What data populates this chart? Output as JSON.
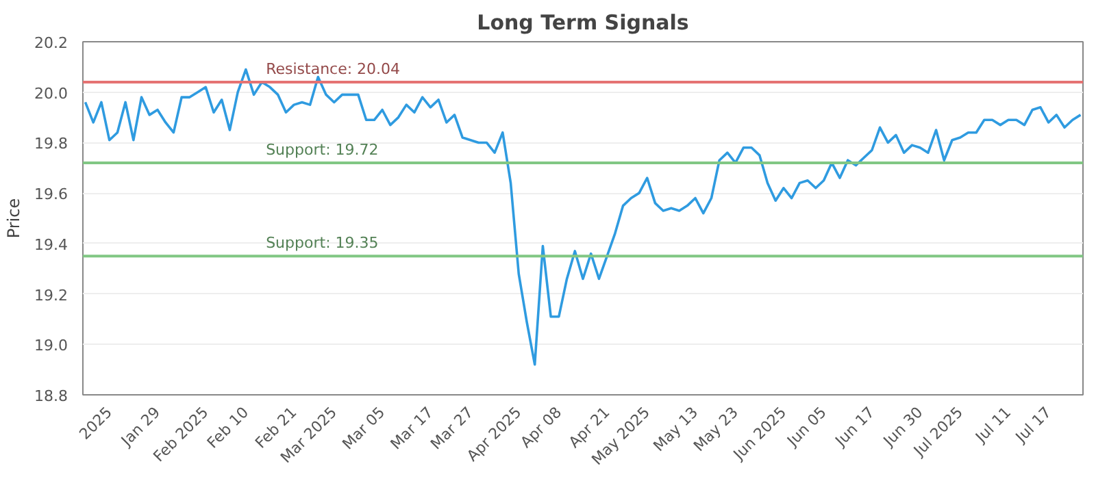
{
  "chart_data": {
    "type": "line",
    "title": "Long Term Signals",
    "ylabel": "Price",
    "categories": [
      null,
      null,
      null,
      "2025",
      null,
      null,
      null,
      null,
      null,
      "Jan 29",
      null,
      null,
      null,
      null,
      null,
      "Feb 2025",
      null,
      null,
      null,
      null,
      "Feb 10",
      null,
      null,
      null,
      null,
      null,
      "Feb 21",
      null,
      null,
      null,
      null,
      "Mar 2025",
      null,
      null,
      null,
      null,
      null,
      "Mar 05",
      null,
      null,
      null,
      null,
      null,
      "Mar 17",
      null,
      null,
      null,
      null,
      "Mar 27",
      null,
      null,
      null,
      null,
      null,
      "Apr 2025",
      null,
      null,
      null,
      null,
      "Apr 08",
      null,
      null,
      null,
      null,
      null,
      "Apr 21",
      null,
      null,
      null,
      null,
      "May 2025",
      null,
      null,
      null,
      null,
      null,
      "May 13",
      null,
      null,
      null,
      null,
      "May 23",
      null,
      null,
      null,
      null,
      null,
      "Jun 2025",
      null,
      null,
      null,
      null,
      "Jun 05",
      null,
      null,
      null,
      null,
      null,
      "Jun 17",
      null,
      null,
      null,
      null,
      null,
      "Jun 30",
      null,
      null,
      null,
      null,
      "Jul 2025",
      null,
      null,
      null,
      null,
      null,
      "Jul 11",
      null,
      null,
      null,
      null,
      "Jul 17",
      null,
      null,
      null,
      null
    ],
    "series": [
      {
        "color": "#2f9be0",
        "values": [
          19.96,
          19.88,
          19.96,
          19.81,
          19.84,
          19.96,
          19.81,
          19.98,
          19.91,
          19.93,
          19.88,
          19.84,
          19.98,
          19.98,
          20.0,
          20.02,
          19.92,
          19.97,
          19.85,
          20.0,
          20.09,
          19.99,
          20.04,
          20.02,
          19.99,
          19.92,
          19.95,
          19.96,
          19.95,
          20.06,
          19.99,
          19.96,
          19.99,
          19.99,
          19.99,
          19.89,
          19.89,
          19.93,
          19.87,
          19.9,
          19.95,
          19.92,
          19.98,
          19.94,
          19.97,
          19.88,
          19.91,
          19.82,
          19.81,
          19.8,
          19.8,
          19.76,
          19.84,
          19.64,
          19.28,
          19.09,
          18.92,
          19.39,
          19.11,
          19.11,
          19.26,
          19.37,
          19.26,
          19.36,
          19.26,
          19.35,
          19.44,
          19.55,
          19.58,
          19.6,
          19.66,
          19.56,
          19.53,
          19.54,
          19.53,
          19.55,
          19.58,
          19.52,
          19.58,
          19.73,
          19.76,
          19.72,
          19.78,
          19.78,
          19.75,
          19.64,
          19.57,
          19.62,
          19.58,
          19.64,
          19.65,
          19.62,
          19.65,
          19.72,
          19.66,
          19.73,
          19.71,
          19.74,
          19.77,
          19.86,
          19.8,
          19.83,
          19.76,
          19.79,
          19.78,
          19.76,
          19.85,
          19.73,
          19.81,
          19.82,
          19.84,
          19.84,
          19.89,
          19.89,
          19.87,
          19.89,
          19.89,
          19.87,
          19.93,
          19.94,
          19.88,
          19.91,
          19.86,
          19.89,
          19.91
        ]
      }
    ],
    "ylim": [
      18.8,
      20.2
    ],
    "yticks": [
      18.8,
      {
        "value": 19.0,
        "label": "19.0"
      },
      19.2,
      19.4,
      19.6,
      19.8,
      {
        "value": 20.0,
        "label": "20.0"
      },
      20.2
    ],
    "grid": "y",
    "ref_lines": [
      {
        "axis": "y",
        "value": 20.04,
        "label": "Resistance: 20.04",
        "color": "#e57373"
      },
      {
        "axis": "y",
        "value": 19.72,
        "label": "Support: 19.72",
        "color": "#81c784"
      },
      {
        "axis": "y",
        "value": 19.35,
        "label": "Support: 19.35",
        "color": "#81c784"
      }
    ]
  }
}
